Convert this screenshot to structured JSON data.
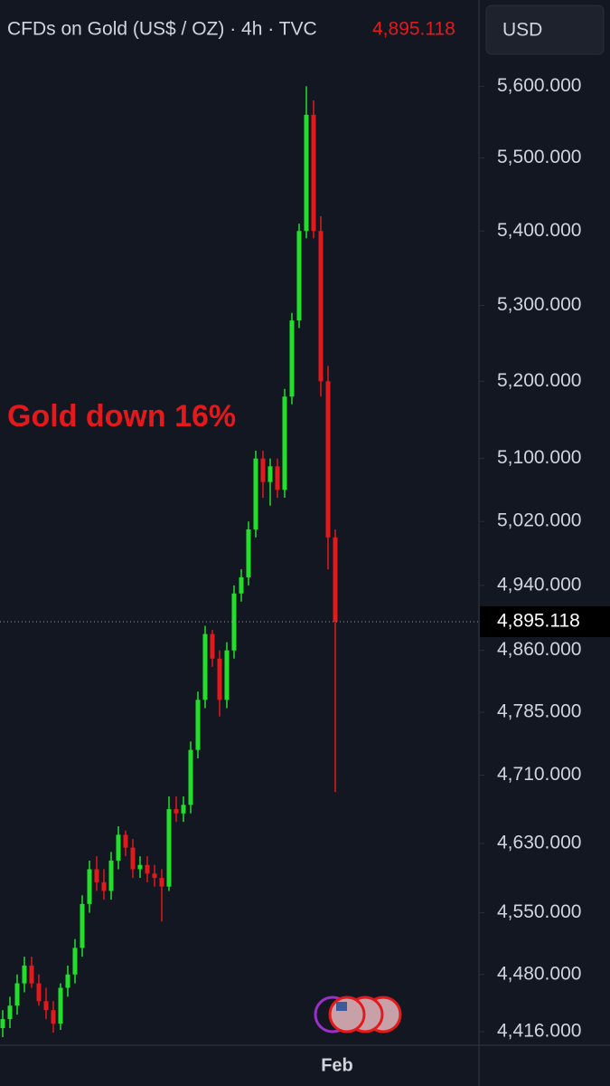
{
  "chart_data": {
    "type": "candlestick",
    "title": "CFDs on Gold (US$ / OZ) · 4h · TVC",
    "currency": "USD",
    "annotation": "Gold down 16%",
    "last_price": {
      "value": 4895.118,
      "label": "4,895.118"
    },
    "log_scale": true,
    "up_color": "#22e02a",
    "down_color": "#e3191b",
    "categories": [
      null,
      null,
      null,
      null,
      null,
      null,
      null,
      null,
      null,
      null,
      null,
      null,
      null,
      null,
      null,
      null,
      null,
      null,
      null,
      null,
      null,
      null,
      null,
      null,
      null,
      null,
      null,
      null,
      null,
      null,
      null,
      null,
      null,
      null,
      null,
      null,
      null,
      null,
      null,
      null,
      null,
      null,
      null,
      null,
      null,
      null,
      "Feb"
    ],
    "open": [
      4420,
      4430,
      4445,
      4470,
      4490,
      4470,
      4450,
      4440,
      4425,
      4465,
      4480,
      4510,
      4560,
      4600,
      4585,
      4575,
      4610,
      4640,
      4625,
      4600,
      4605,
      4595,
      4590,
      4580,
      4670,
      4665,
      4675,
      4740,
      4800,
      4880,
      4850,
      4800,
      4860,
      4930,
      4950,
      5010,
      5100,
      5070,
      5090,
      5060,
      5180,
      5280,
      5400,
      5560,
      5400,
      5200,
      5000
    ],
    "high": [
      4440,
      4455,
      4480,
      4500,
      4500,
      4480,
      4465,
      4450,
      4470,
      4490,
      4520,
      4570,
      4610,
      4615,
      4600,
      4620,
      4650,
      4645,
      4635,
      4615,
      4615,
      4605,
      4600,
      4685,
      4685,
      4685,
      4750,
      4810,
      4890,
      4885,
      4860,
      4870,
      4940,
      4960,
      5020,
      5110,
      5110,
      5100,
      5100,
      5190,
      5290,
      5410,
      5600,
      5580,
      5420,
      5220,
      5010
    ],
    "low": [
      4410,
      4420,
      4435,
      4460,
      4465,
      4445,
      4430,
      4415,
      4418,
      4455,
      4470,
      4500,
      4550,
      4575,
      4565,
      4565,
      4600,
      4615,
      4590,
      4590,
      4585,
      4580,
      4540,
      4575,
      4655,
      4655,
      4665,
      4730,
      4790,
      4840,
      4780,
      4790,
      4850,
      4920,
      4940,
      5000,
      5050,
      5040,
      5050,
      5050,
      5170,
      5270,
      5390,
      5390,
      5180,
      4960,
      4690
    ],
    "close": [
      4430,
      4445,
      4470,
      4490,
      4470,
      4450,
      4440,
      4425,
      4465,
      4480,
      4510,
      4560,
      4600,
      4585,
      4575,
      4610,
      4640,
      4625,
      4600,
      4605,
      4595,
      4590,
      4580,
      4670,
      4665,
      4675,
      4740,
      4800,
      4880,
      4850,
      4800,
      4860,
      4930,
      4950,
      5010,
      5100,
      5070,
      5090,
      5060,
      5180,
      5280,
      5400,
      5560,
      5400,
      5200,
      5000,
      4895.118
    ],
    "ylim": [
      4406,
      5658
    ],
    "yticks": [
      {
        "value": 4416,
        "label": "4,416.000"
      },
      {
        "value": 4480,
        "label": "4,480.000"
      },
      {
        "value": 4550,
        "label": "4,550.000"
      },
      {
        "value": 4630,
        "label": "4,630.000"
      },
      {
        "value": 4710,
        "label": "4,710.000"
      },
      {
        "value": 4785,
        "label": "4,785.000"
      },
      {
        "value": 4860,
        "label": "4,860.000"
      },
      {
        "value": 4940,
        "label": "4,940.000"
      },
      {
        "value": 5020,
        "label": "5,020.000"
      },
      {
        "value": 5100,
        "label": "5,100.000"
      },
      {
        "value": 5200,
        "label": "5,200.000"
      },
      {
        "value": 5300,
        "label": "5,300.000"
      },
      {
        "value": 5400,
        "label": "5,400.000"
      },
      {
        "value": 5500,
        "label": "5,500.000"
      },
      {
        "value": 5600,
        "label": "5,600.000"
      }
    ]
  }
}
